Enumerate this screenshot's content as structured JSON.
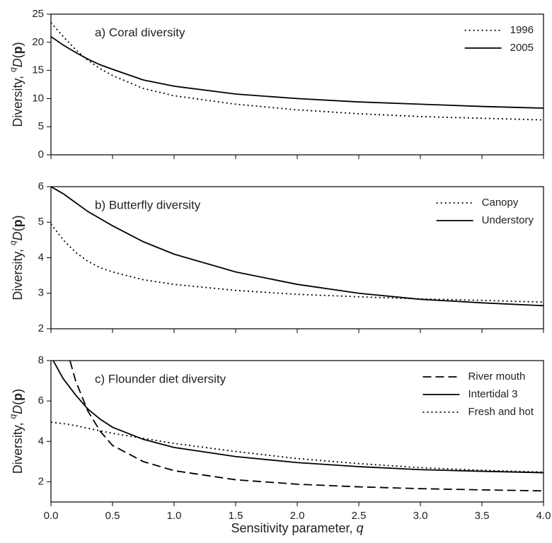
{
  "chart_data": [
    {
      "type": "line",
      "title": "a) Coral diversity",
      "ylabel": [
        "Diversity, ",
        "q",
        "D",
        "(",
        "p",
        ")"
      ],
      "x": [
        0,
        0.1,
        0.2,
        0.3,
        0.4,
        0.5,
        0.75,
        1,
        1.5,
        2,
        2.5,
        3,
        3.5,
        4
      ],
      "xlim": [
        0,
        4
      ],
      "xticks": [
        0,
        0.5,
        1,
        1.5,
        2,
        2.5,
        3,
        3.5,
        4
      ],
      "ylim": [
        0,
        25
      ],
      "yticks": [
        0,
        5,
        10,
        15,
        20,
        25
      ],
      "legend": "top-right",
      "series": [
        {
          "name": "1996",
          "color": "#000000",
          "dash": "dotted",
          "values": [
            23.5,
            21,
            18.7,
            16.8,
            15.3,
            14.1,
            11.8,
            10.5,
            9,
            8,
            7.3,
            6.8,
            6.5,
            6.2
          ]
        },
        {
          "name": "2005",
          "color": "#000000",
          "dash": "solid",
          "values": [
            21,
            19.5,
            18.2,
            17,
            16,
            15.2,
            13.3,
            12.2,
            10.8,
            10,
            9.4,
            9,
            8.6,
            8.3
          ]
        }
      ]
    },
    {
      "type": "line",
      "title": "b) Butterfly diversity",
      "ylabel": [
        "Diversity, ",
        "q",
        "D",
        "(",
        "p",
        ")"
      ],
      "x": [
        0,
        0.1,
        0.2,
        0.3,
        0.4,
        0.5,
        0.75,
        1,
        1.5,
        2,
        2.5,
        3,
        3.5,
        4
      ],
      "xlim": [
        0,
        4
      ],
      "xticks": [
        0,
        0.5,
        1,
        1.5,
        2,
        2.5,
        3,
        3.5,
        4
      ],
      "ylim": [
        2,
        6
      ],
      "yticks": [
        2,
        3,
        4,
        5,
        6
      ],
      "legend": "top-right",
      "series": [
        {
          "name": "Canopy",
          "color": "#000000",
          "dash": "dotted",
          "values": [
            4.95,
            4.5,
            4.15,
            3.9,
            3.72,
            3.6,
            3.38,
            3.25,
            3.08,
            2.97,
            2.9,
            2.84,
            2.8,
            2.75
          ]
        },
        {
          "name": "Understory",
          "color": "#000000",
          "dash": "solid",
          "values": [
            6,
            5.8,
            5.55,
            5.3,
            5.1,
            4.9,
            4.45,
            4.1,
            3.6,
            3.25,
            3,
            2.83,
            2.73,
            2.65
          ]
        }
      ]
    },
    {
      "type": "line",
      "title": "c) Flounder diet diversity",
      "ylabel": [
        "Diversity, ",
        "q",
        "D",
        "(",
        "p",
        ")"
      ],
      "xlabel": [
        "Sensitivity parameter, ",
        "q"
      ],
      "x": [
        0,
        0.1,
        0.2,
        0.3,
        0.4,
        0.5,
        0.75,
        1,
        1.5,
        2,
        2.5,
        3,
        3.5,
        4
      ],
      "xlim": [
        0,
        4
      ],
      "xticks": [
        {
          "value": 0,
          "label": "0.0"
        },
        {
          "value": 0.5,
          "label": "0.5"
        },
        {
          "value": 1,
          "label": "1.0"
        },
        {
          "value": 1.5,
          "label": "1.5"
        },
        {
          "value": 2,
          "label": "2.0"
        },
        {
          "value": 2.5,
          "label": "2.5"
        },
        {
          "value": 3,
          "label": "3.0"
        },
        {
          "value": 3.5,
          "label": "3.5"
        },
        {
          "value": 4,
          "label": "4.0"
        }
      ],
      "ylim": [
        1,
        8
      ],
      "yticks": [
        2,
        4,
        6,
        8
      ],
      "legend": "top-right",
      "series": [
        {
          "name": "River mouth",
          "color": "#000000",
          "dash": "dashed",
          "values": [
            null,
            9.2,
            7,
            5.5,
            4.5,
            3.8,
            3,
            2.55,
            2.1,
            1.88,
            1.75,
            1.66,
            1.6,
            1.55
          ]
        },
        {
          "name": "Intertidal 3",
          "color": "#000000",
          "dash": "solid",
          "values": [
            8.2,
            7.1,
            6.3,
            5.6,
            5.1,
            4.7,
            4.1,
            3.7,
            3.25,
            2.95,
            2.75,
            2.6,
            2.52,
            2.45
          ]
        },
        {
          "name": "Fresh and hot",
          "color": "#000000",
          "dash": "dotted",
          "values": [
            4.95,
            4.88,
            4.78,
            4.65,
            4.52,
            4.4,
            4.15,
            3.9,
            3.5,
            3.15,
            2.9,
            2.7,
            2.57,
            2.48
          ]
        }
      ]
    }
  ]
}
